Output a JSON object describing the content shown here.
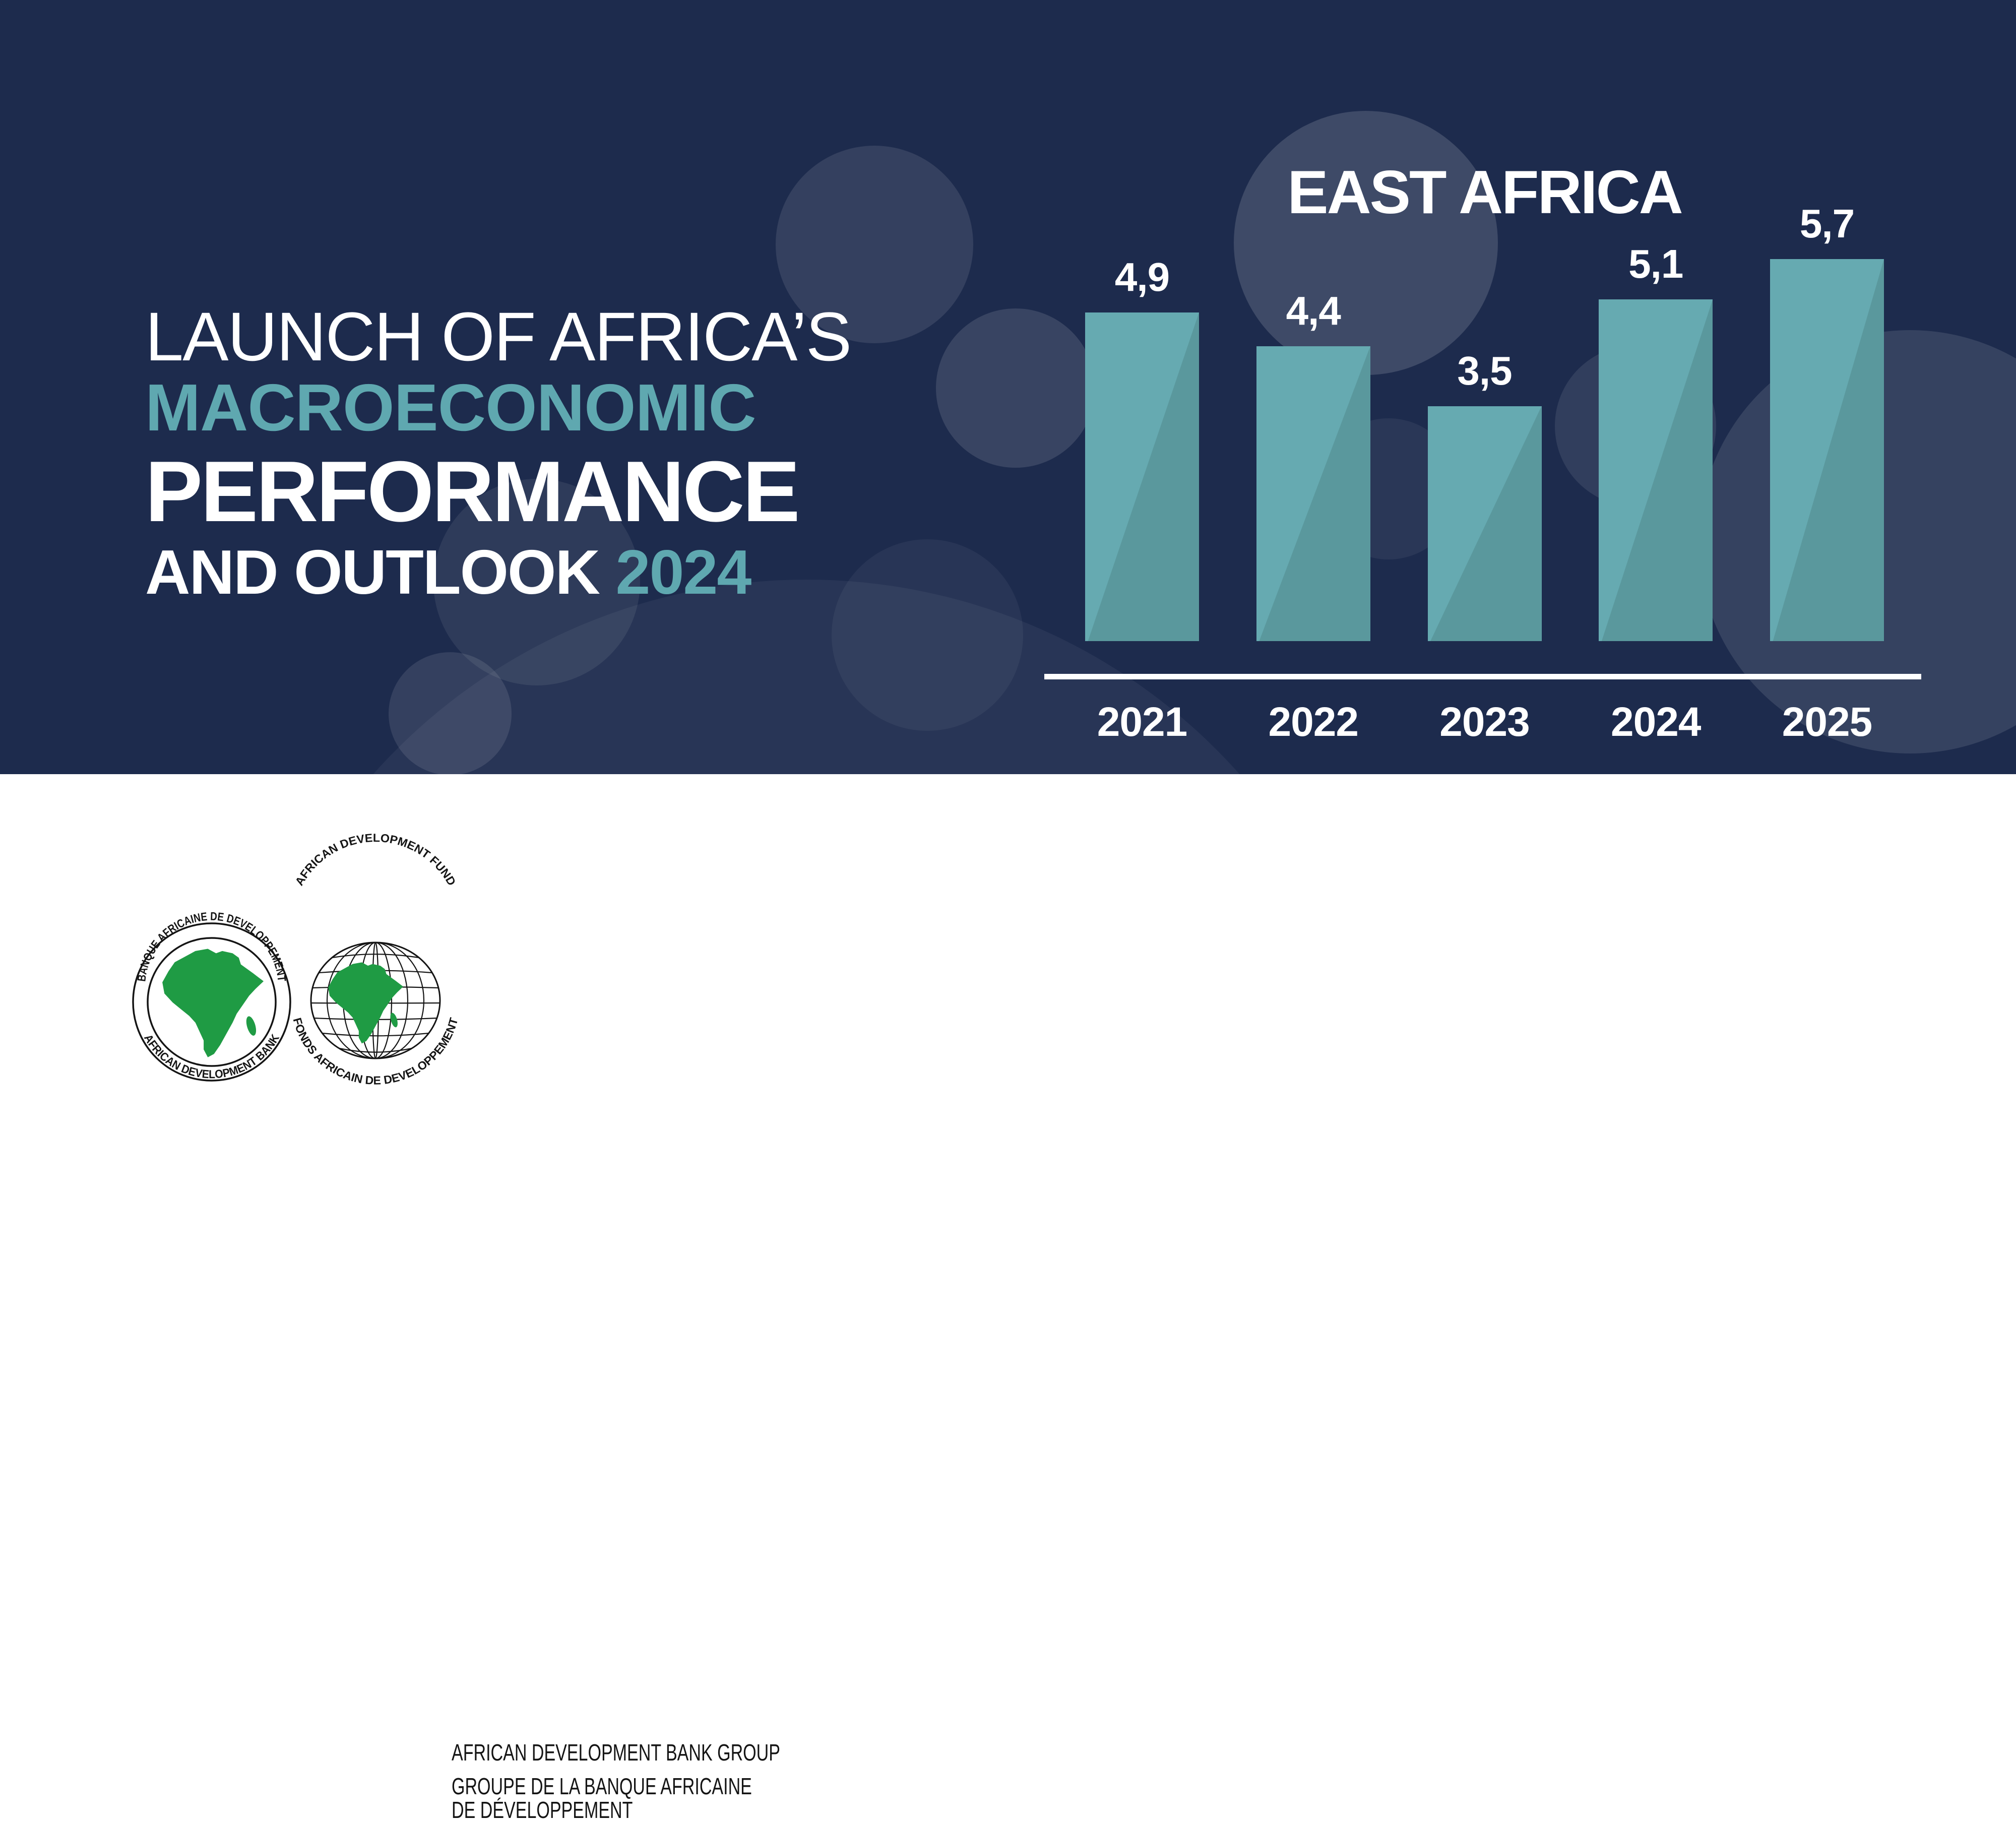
{
  "title": {
    "line1": "LAUNCH OF AFRICA’S",
    "line2": "MACROECONOMIC",
    "line3": "PERFORMANCE",
    "line4_white": "AND OUTLOOK ",
    "line4_accent": "2024"
  },
  "chart_data": {
    "type": "bar",
    "title": "EAST AFRICA",
    "categories": [
      "2021",
      "2022",
      "2023",
      "2024",
      "2025"
    ],
    "values": [
      4.9,
      4.4,
      3.5,
      5.1,
      5.7
    ],
    "value_labels": [
      "4,9",
      "4,4",
      "3,5",
      "5,1",
      "5,7"
    ],
    "ylabel": "",
    "xlabel": "",
    "ylim": [
      0,
      6.5
    ],
    "grid": false,
    "legend": "none",
    "note": "GDP growth (%), decimal comma labels above teal bars, white baseline axis, years below"
  },
  "footer": {
    "logo_adb": {
      "name": "african-development-bank-seal",
      "top_text": "BANQUE AFRICAINE DE DEVELOPPEMENT",
      "bottom_text": "AFRICAN DEVELOPMENT BANK"
    },
    "logo_adf": {
      "name": "african-development-fund-globe",
      "top_text": "AFRICAN DEVELOPMENT FUND",
      "bottom_text": "FONDS AFRICAIN DE DEVELOPPEMENT"
    },
    "org_line1": "AFRICAN DEVELOPMENT BANK GROUP",
    "org_line2": "GROUPE DE LA BANQUE AFRICAINE",
    "org_line3": "DE DÉVELOPPEMENT"
  },
  "colors": {
    "navy": "#1D2B4D",
    "teal": "#5FA8B0",
    "barLight": "#66AAB1",
    "barDark": "#5A989D",
    "axisWhite": "#FFFFFF",
    "logoGreen": "#1F9B44",
    "ink": "#141414"
  }
}
